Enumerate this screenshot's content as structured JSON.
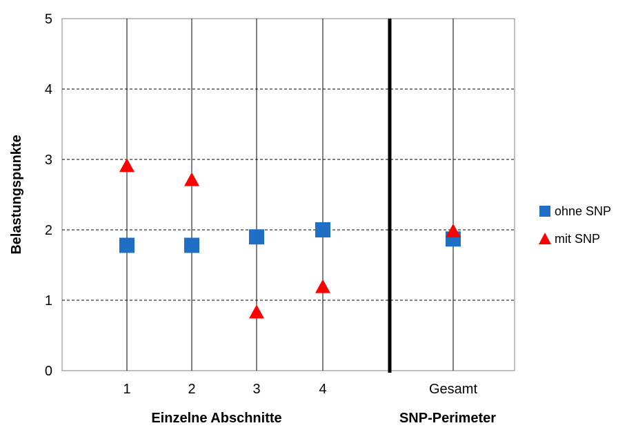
{
  "chart_data": {
    "type": "scatter",
    "categories": [
      "1",
      "2",
      "3",
      "4",
      "Gesamt"
    ],
    "ylabel": "Belastungspunkte",
    "ylim": [
      0,
      5
    ],
    "yticks": [
      "0",
      "1",
      "2",
      "3",
      "4",
      "5"
    ],
    "group_labels": [
      "Einzelne Abschnitte",
      "SNP-Perimeter"
    ],
    "grid": true,
    "legend_position": "right",
    "series": [
      {
        "name": "ohne SNP",
        "marker": "square",
        "color": "#1f6fc5",
        "values": [
          1.78,
          1.78,
          1.9,
          2.0,
          1.87
        ]
      },
      {
        "name": "mit SNP",
        "marker": "triangle",
        "color": "#ff0000",
        "values": [
          2.9,
          2.7,
          0.82,
          1.18,
          1.97
        ]
      }
    ]
  }
}
